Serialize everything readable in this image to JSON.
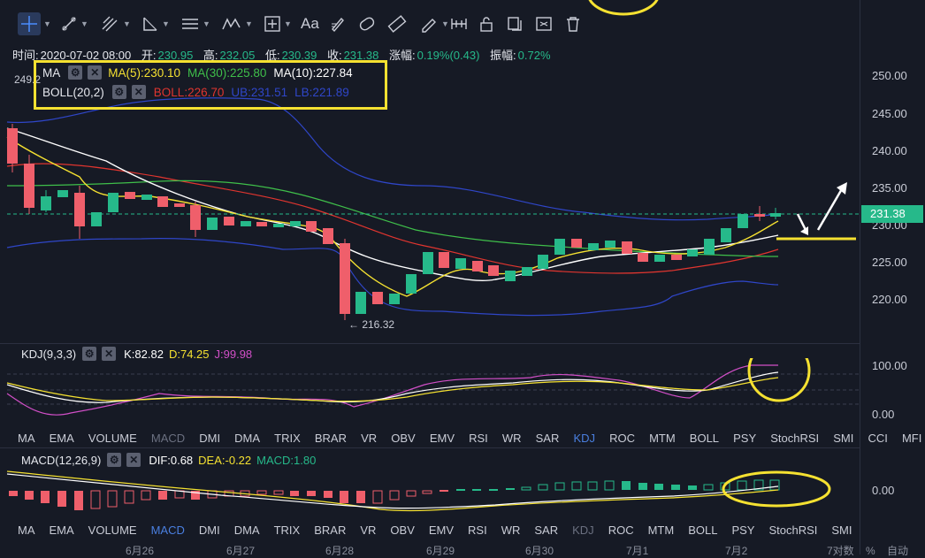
{
  "toolbar": {
    "icons": [
      "crosshair-icon",
      "trend-line-icon",
      "fib-icon",
      "triangle-icon",
      "parallel-lines-icon",
      "wave-icon",
      "measure-icon",
      "text-icon",
      "brush-icon",
      "eraser-icon",
      "ruler-icon",
      "pencil-icon",
      "magnet-icon",
      "lock-icon",
      "copy-icon",
      "hide-icon",
      "trash-icon"
    ],
    "text_tool_label": "Aa"
  },
  "infobar": {
    "time_label": "时间:",
    "time_value": "2020-07-02 08:00",
    "open_label": "开:",
    "open_value": "230.95",
    "high_label": "高:",
    "high_value": "232.05",
    "low_label": "低:",
    "low_value": "230.39",
    "close_label": "收:",
    "close_value": "231.38",
    "change_label": "涨幅:",
    "change_value": "0.19%(0.43)",
    "amplitude_label": "振幅:",
    "amplitude_value": "0.72%"
  },
  "main_legend": {
    "ma_label": "MA",
    "ma5": "MA(5):230.10",
    "ma30": "MA(30):225.80",
    "ma10": "MA(10):227.84",
    "boll_label": "BOLL(20,2)",
    "boll": "BOLL:226.70",
    "ub": "UB:231.51",
    "lb": "LB:221.89",
    "colors": {
      "ma5": "#f5e131",
      "ma30": "#3fbf4a",
      "ma10": "#ffffff",
      "boll": "#e0352f",
      "ub": "#2f46c8",
      "lb": "#2f46c8"
    }
  },
  "price_axis": {
    "labels": [
      "250.00",
      "245.00",
      "240.00",
      "235.00",
      "230.00",
      "225.00",
      "220.00"
    ],
    "current_price": "231.38",
    "high_marker": "249.2",
    "low_marker": "← 216.32"
  },
  "kdj": {
    "label": "KDJ(9,3,3)",
    "k": "K:82.82",
    "d": "D:74.25",
    "j": "J:99.98",
    "axis": [
      "100.00",
      "0.00"
    ]
  },
  "kdj_tabs": [
    "MA",
    "EMA",
    "VOLUME",
    "MACD",
    "DMI",
    "DMA",
    "TRIX",
    "BRAR",
    "VR",
    "OBV",
    "EMV",
    "RSI",
    "WR",
    "SAR",
    "KDJ",
    "ROC",
    "MTM",
    "BOLL",
    "PSY",
    "StochRSI",
    "SMI",
    "CCI",
    "MFI"
  ],
  "kdj_tabs_active": "KDJ",
  "kdj_tabs_dim": "MACD",
  "macd": {
    "label": "MACD(12,26,9)",
    "dif": "DIF:0.68",
    "dea": "DEA:-0.22",
    "macd": "MACD:1.80",
    "axis": [
      "0.00"
    ]
  },
  "macd_tabs": [
    "MA",
    "EMA",
    "VOLUME",
    "MACD",
    "DMI",
    "DMA",
    "TRIX",
    "BRAR",
    "VR",
    "OBV",
    "EMV",
    "RSI",
    "WR",
    "SAR",
    "KDJ",
    "ROC",
    "MTM",
    "BOLL",
    "PSY",
    "StochRSI",
    "SMI"
  ],
  "macd_tabs_active": "MACD",
  "macd_tabs_dim": "KDJ",
  "dates": [
    "6月26",
    "6月27",
    "6月28",
    "6月29",
    "6月30",
    "7月1",
    "7月2"
  ],
  "footer": {
    "fraction_label": "7对数",
    "percent_label": "%",
    "auto_label": "自动"
  },
  "colors": {
    "up": "#26b98a",
    "down": "#ef5f6b",
    "annotation": "#f5e131",
    "bg": "#161a25"
  }
}
